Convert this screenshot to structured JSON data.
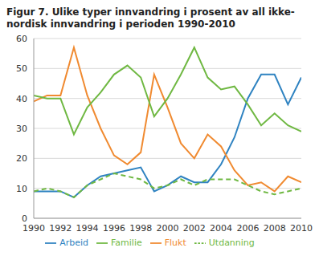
{
  "chart_data": {
    "type": "line",
    "title": "Figur 7. Ulike typer innvandring i prosent av all ikke-nordisk innvandring i perioden 1990-2010",
    "x": [
      1990,
      1991,
      1992,
      1993,
      1994,
      1995,
      1996,
      1997,
      1998,
      1999,
      2000,
      2001,
      2002,
      2003,
      2004,
      2005,
      2006,
      2007,
      2008,
      2009,
      2010
    ],
    "series": [
      {
        "name": "Arbeid",
        "color": "#2f83c1",
        "line_style": "solid",
        "values": [
          9,
          9,
          9,
          7,
          11,
          14,
          15,
          16,
          17,
          9,
          11,
          14,
          12,
          12,
          18,
          27,
          40,
          48,
          48,
          38,
          47
        ]
      },
      {
        "name": "Flukt",
        "color": "#f08a30",
        "line_style": "solid",
        "values": [
          39,
          41,
          41,
          57,
          41,
          30,
          21,
          18,
          22,
          48,
          37,
          25,
          20,
          28,
          24,
          16,
          11,
          12,
          9,
          14,
          12
        ]
      },
      {
        "name": "Familie",
        "color": "#6fb842",
        "line_style": "solid",
        "values": [
          41,
          40,
          40,
          28,
          37,
          42,
          48,
          51,
          47,
          34,
          40,
          48,
          57,
          47,
          43,
          44,
          38,
          31,
          35,
          31,
          29
        ]
      },
      {
        "name": "Utdanning",
        "color": "#6fb842",
        "line_style": "dashed",
        "values": [
          9,
          10,
          9,
          7,
          11,
          13,
          15,
          14,
          13,
          10,
          11,
          13,
          11,
          13,
          13,
          13,
          11,
          9,
          8,
          9,
          10
        ]
      }
    ],
    "xlim": [
      1990,
      2010
    ],
    "xticks": [
      1990,
      1992,
      1994,
      1996,
      1998,
      2000,
      2002,
      2004,
      2006,
      2008,
      2010
    ],
    "ylim": [
      0,
      60
    ],
    "yticks": [
      0,
      10,
      20,
      30,
      40,
      50,
      60
    ],
    "grid": true,
    "legend": "bottom"
  }
}
